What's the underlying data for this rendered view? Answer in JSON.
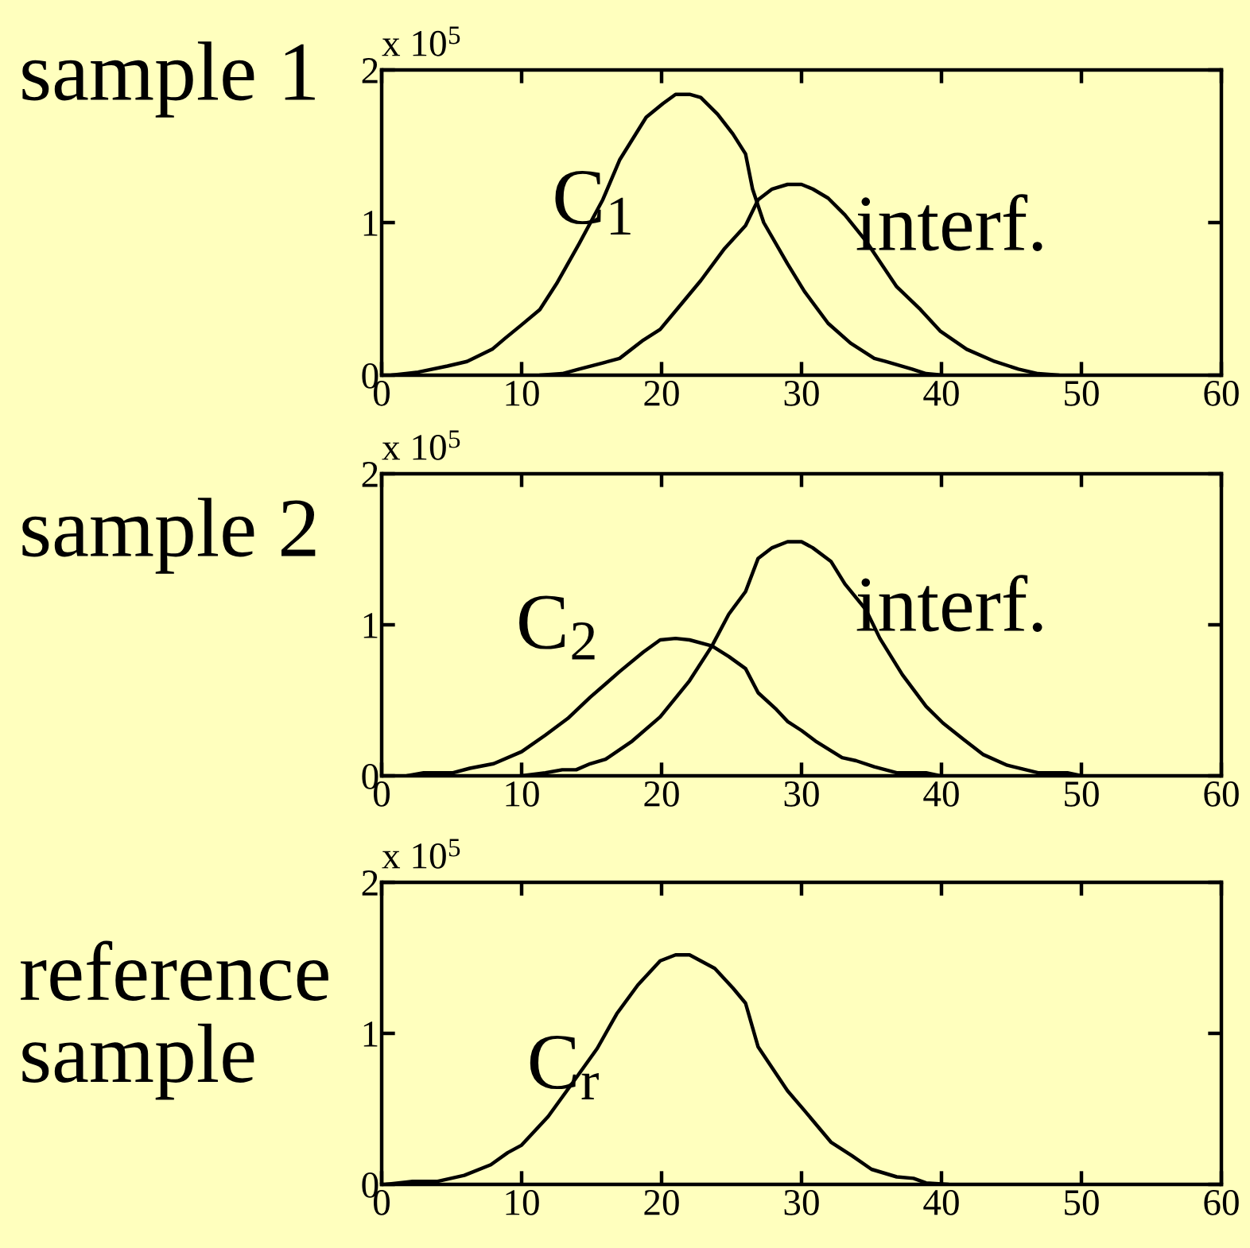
{
  "chart_data": [
    {
      "type": "line",
      "title": "sample 1",
      "annotations": [
        "x 10$^{5}$"
      ],
      "xlim": [
        0,
        60
      ],
      "xticks": [
        0,
        10,
        20,
        30,
        40,
        50,
        60
      ],
      "ylim": [
        0,
        2
      ],
      "yticks": [
        0,
        1,
        2
      ],
      "series": [
        {
          "name": "C$_{1}$",
          "color": "#000000",
          "x": [
            0.7,
            2.6,
            4.7,
            6.1,
            7.9,
            8.8,
            10.0,
            11.3,
            12.5,
            14.1,
            15.8,
            17.0,
            18.9,
            20.1,
            21.0,
            22.0,
            22.8,
            24.0,
            25.1,
            26.0,
            26.5,
            27.3,
            29.0,
            30.2,
            31.9,
            33.5,
            35.2,
            36.0,
            37.9,
            38.9,
            40.1
          ],
          "values": [
            0,
            0.02,
            0.06,
            0.09,
            0.17,
            0.24,
            0.33,
            0.43,
            0.6,
            0.86,
            1.15,
            1.41,
            1.69,
            1.78,
            1.84,
            1.84,
            1.82,
            1.71,
            1.58,
            1.45,
            1.22,
            1.0,
            0.73,
            0.55,
            0.34,
            0.21,
            0.11,
            0.09,
            0.04,
            0.01,
            0
          ]
        },
        {
          "name": "interf.",
          "color": "#000000",
          "x": [
            11.3,
            12.9,
            14.1,
            15.8,
            17.0,
            18.7,
            19.9,
            20.9,
            22.8,
            24.5,
            26.0,
            26.9,
            27.9,
            29.0,
            30.0,
            30.8,
            31.9,
            33.1,
            34.6,
            36.8,
            38.5,
            39.9,
            41.8,
            43.8,
            45.5,
            46.9,
            48.4
          ],
          "values": [
            0,
            0.01,
            0.04,
            0.08,
            0.11,
            0.23,
            0.3,
            0.41,
            0.62,
            0.83,
            0.98,
            1.15,
            1.22,
            1.25,
            1.25,
            1.22,
            1.16,
            1.05,
            0.88,
            0.58,
            0.43,
            0.29,
            0.17,
            0.09,
            0.04,
            0.01,
            0
          ]
        }
      ]
    },
    {
      "type": "line",
      "title": "sample 2",
      "annotations": [
        "x 10$^{5}$"
      ],
      "xlim": [
        0,
        60
      ],
      "xticks": [
        0,
        10,
        20,
        30,
        40,
        50,
        60
      ],
      "ylim": [
        0,
        2
      ],
      "yticks": [
        0,
        1,
        2
      ],
      "series": [
        {
          "name": "C$_{2}$",
          "color": "#000000",
          "x": [
            1.8,
            3.0,
            5.1,
            6.3,
            8.0,
            10.0,
            11.7,
            13.3,
            14.9,
            17.0,
            18.7,
            19.9,
            21.0,
            22.0,
            23.6,
            24.8,
            26.0,
            26.9,
            28.2,
            29.0,
            30.0,
            31.0,
            32.9,
            33.9,
            35.2,
            36.8,
            38.9,
            39.9
          ],
          "values": [
            0,
            0.02,
            0.02,
            0.05,
            0.08,
            0.16,
            0.27,
            0.38,
            0.52,
            0.69,
            0.82,
            0.9,
            0.91,
            0.9,
            0.86,
            0.79,
            0.71,
            0.55,
            0.44,
            0.36,
            0.3,
            0.23,
            0.12,
            0.1,
            0.06,
            0.02,
            0.02,
            0
          ]
        },
        {
          "name": "interf.",
          "color": "#000000",
          "x": [
            10.0,
            11.7,
            12.9,
            13.9,
            14.9,
            16.0,
            17.9,
            19.9,
            22.0,
            23.6,
            24.8,
            26.0,
            26.9,
            27.9,
            29.0,
            30.0,
            30.8,
            32.1,
            33.1,
            34.6,
            35.6,
            37.2,
            38.9,
            40.1,
            41.6,
            43.0,
            44.7,
            46.9,
            49.0,
            50.0
          ],
          "values": [
            0,
            0.02,
            0.04,
            0.04,
            0.08,
            0.11,
            0.23,
            0.39,
            0.63,
            0.86,
            1.07,
            1.22,
            1.44,
            1.51,
            1.55,
            1.55,
            1.51,
            1.42,
            1.27,
            1.1,
            0.91,
            0.67,
            0.46,
            0.35,
            0.24,
            0.14,
            0.07,
            0.02,
            0.02,
            0
          ]
        }
      ]
    },
    {
      "type": "line",
      "title": "reference\nsample",
      "annotations": [
        "x 10$^{5}$"
      ],
      "xlim": [
        0,
        60
      ],
      "xticks": [
        0,
        10,
        20,
        30,
        40,
        50,
        60
      ],
      "ylim": [
        0,
        2
      ],
      "yticks": [
        0,
        1,
        2
      ],
      "series": [
        {
          "name": "C$_{r}$",
          "color": "#000000",
          "x": [
            0.3,
            2.2,
            4.0,
            5.9,
            7.8,
            9.0,
            10.0,
            11.9,
            13.7,
            15.4,
            16.8,
            18.3,
            19.9,
            21.0,
            22.0,
            23.8,
            25.1,
            26.0,
            26.9,
            29.0,
            30.2,
            32.1,
            33.6,
            35.0,
            36.8,
            38.0,
            38.9,
            40.5
          ],
          "values": [
            0,
            0.02,
            0.02,
            0.06,
            0.13,
            0.21,
            0.26,
            0.45,
            0.68,
            0.9,
            1.13,
            1.32,
            1.48,
            1.52,
            1.52,
            1.43,
            1.3,
            1.2,
            0.91,
            0.62,
            0.49,
            0.28,
            0.19,
            0.1,
            0.05,
            0.04,
            0.01,
            0
          ]
        }
      ]
    }
  ]
}
